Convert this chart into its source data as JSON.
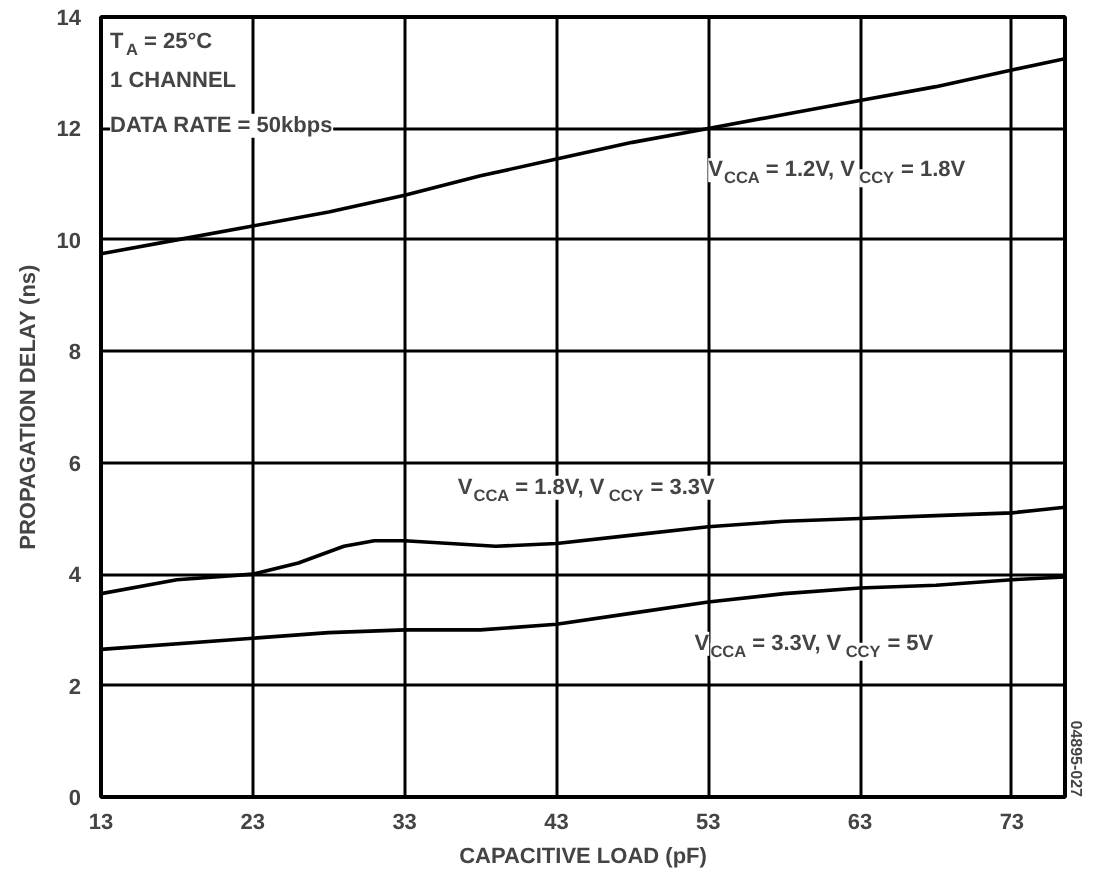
{
  "chart_data": {
    "type": "line",
    "xlabel": "CAPACITIVE LOAD (pF)",
    "ylabel": "PROPAGATION DELAY (ns)",
    "xlim": [
      13,
      76.5
    ],
    "xticks": [
      13,
      23,
      33,
      43,
      53,
      63,
      73
    ],
    "ylim": [
      0,
      14
    ],
    "yticks": [
      0,
      2,
      4,
      6,
      8,
      10,
      12,
      14
    ],
    "grid": true,
    "marker": "none",
    "line_style": "solid",
    "series": [
      {
        "name": "V$_{CCA}$ = 1.2V, V$_{CCY}$ = 1.8V",
        "color": "#000000",
        "x": [
          13,
          18,
          23,
          28,
          33,
          38,
          43,
          48,
          53,
          58,
          63,
          68,
          73,
          76.5
        ],
        "values": [
          9.75,
          10.0,
          10.25,
          10.5,
          10.8,
          11.15,
          11.45,
          11.75,
          12.0,
          12.25,
          12.5,
          12.75,
          13.05,
          13.25
        ]
      },
      {
        "name": "V$_{CCA}$ = 1.8V, V$_{CCY}$ = 3.3V",
        "color": "#000000",
        "x": [
          13,
          18,
          23,
          26,
          29,
          31,
          33,
          36,
          39,
          43,
          48,
          53,
          58,
          63,
          68,
          73,
          76.5
        ],
        "values": [
          3.65,
          3.9,
          4.0,
          4.2,
          4.5,
          4.6,
          4.6,
          4.55,
          4.5,
          4.55,
          4.7,
          4.85,
          4.95,
          5.0,
          5.05,
          5.1,
          5.2
        ]
      },
      {
        "name": "V$_{CCA}$ = 3.3V, V$_{CCY}$ = 5V",
        "color": "#000000",
        "x": [
          13,
          23,
          28,
          33,
          38,
          43,
          48,
          53,
          58,
          63,
          68,
          73,
          76.5
        ],
        "values": [
          2.65,
          2.85,
          2.95,
          3.0,
          3.0,
          3.1,
          3.3,
          3.5,
          3.65,
          3.75,
          3.8,
          3.9,
          3.95
        ]
      }
    ],
    "annotations": [
      "T$_{A}$ = 25°C",
      "1 CHANNEL",
      "DATA RATE = 50kbps",
      "04895-027"
    ]
  }
}
